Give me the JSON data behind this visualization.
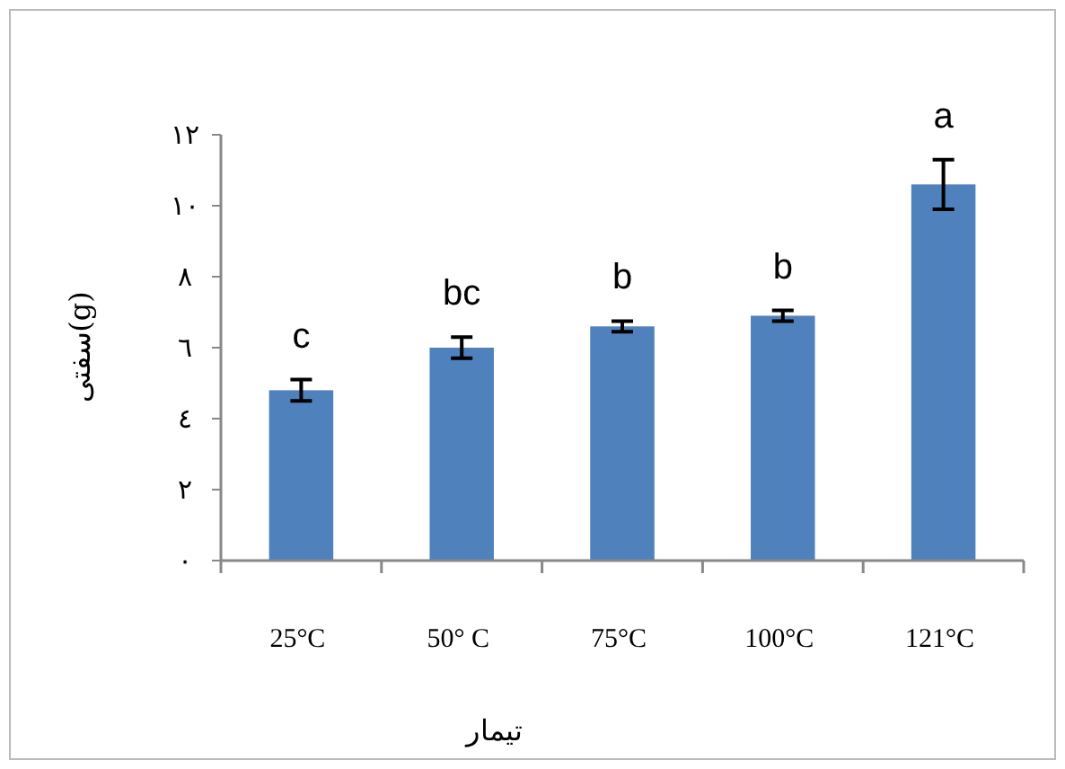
{
  "chart_data": {
    "type": "bar",
    "categories": [
      "25°C",
      "50° C",
      "75°C",
      "100°C",
      "121°C"
    ],
    "values": [
      4.8,
      6.0,
      6.6,
      6.9,
      10.6
    ],
    "errors": [
      0.3,
      0.3,
      0.15,
      0.15,
      0.7
    ],
    "color": "#4f81bd",
    "xlabel": "تیمار",
    "ylabel": "سفتی(g)",
    "ylim": [
      0,
      12
    ],
    "yticks": [
      {
        "value": 0,
        "label": "٠"
      },
      {
        "value": 2,
        "label": "٢"
      },
      {
        "value": 4,
        "label": "٤"
      },
      {
        "value": 6,
        "label": "٦"
      },
      {
        "value": 8,
        "label": "٨"
      },
      {
        "value": 10,
        "label": "١٠"
      },
      {
        "value": 12,
        "label": "١٢"
      }
    ],
    "annotations": [
      "c",
      "bc",
      "b",
      "b",
      "a"
    ],
    "grid": false
  }
}
